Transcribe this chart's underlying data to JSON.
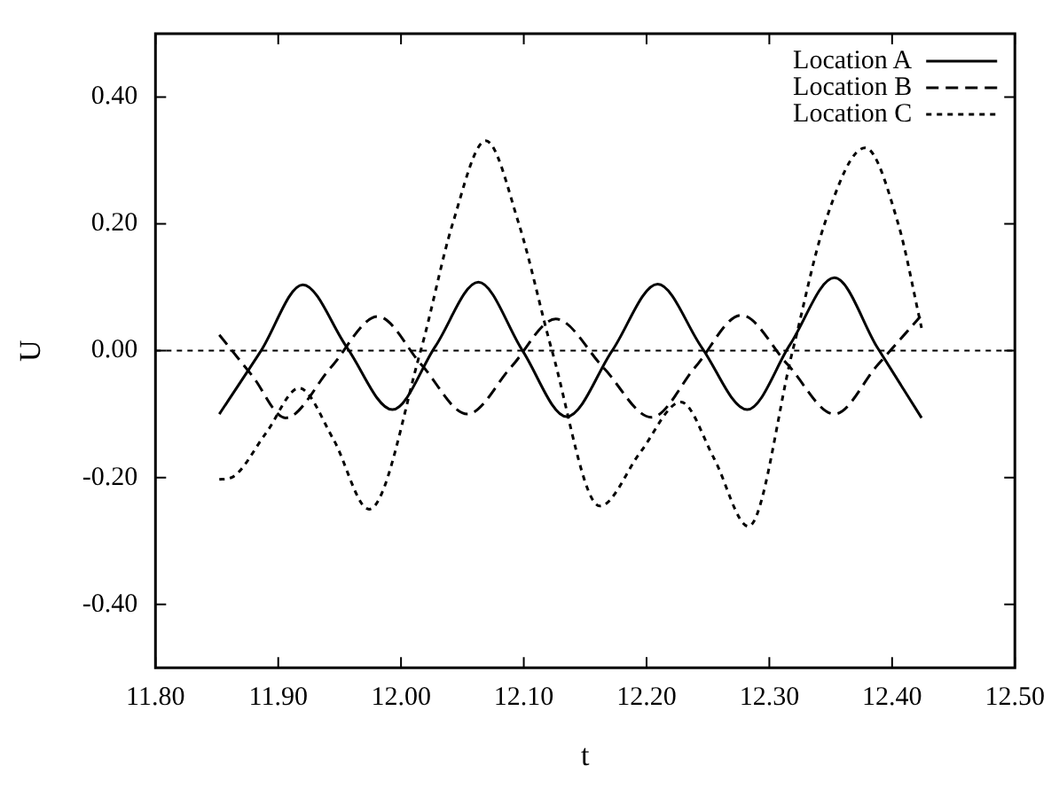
{
  "chart_data": {
    "type": "line",
    "xlabel": "t",
    "ylabel": "U",
    "xlim": [
      11.8,
      12.5
    ],
    "ylim": [
      -0.5,
      0.5
    ],
    "xticks": [
      {
        "value": 11.8,
        "label": "11.80"
      },
      {
        "value": 11.9,
        "label": "11.90"
      },
      {
        "value": 12.0,
        "label": "12.00"
      },
      {
        "value": 12.1,
        "label": "12.10"
      },
      {
        "value": 12.2,
        "label": "12.20"
      },
      {
        "value": 12.3,
        "label": "12.30"
      },
      {
        "value": 12.4,
        "label": "12.40"
      },
      {
        "value": 12.5,
        "label": "12.50"
      }
    ],
    "yticks": [
      {
        "value": -0.4,
        "label": "-0.40"
      },
      {
        "value": -0.2,
        "label": "-0.20"
      },
      {
        "value": 0,
        "label": "0.00"
      },
      {
        "value": 0.2,
        "label": "0.20"
      },
      {
        "value": 0.4,
        "label": "0.40"
      }
    ],
    "grid": false,
    "legend": "top right",
    "marker": "none",
    "ref_lines": [
      {
        "axis": "y",
        "value": 0,
        "line_style": "dotted",
        "color": "#000000"
      }
    ],
    "series": [
      {
        "name": "Location A",
        "color": "#000000",
        "line_style": "solid",
        "x": [
          11.852,
          11.886,
          11.92,
          11.956,
          11.993,
          12.028,
          12.063,
          12.099,
          12.135,
          12.172,
          12.209,
          12.245,
          12.282,
          12.317,
          12.353,
          12.388,
          12.424
        ],
        "values": [
          -0.1,
          0.0,
          0.104,
          0.005,
          -0.093,
          0.007,
          0.108,
          0.0,
          -0.104,
          0.0,
          0.105,
          0.005,
          -0.093,
          0.01,
          0.115,
          0.005,
          -0.106
        ]
      },
      {
        "name": "Location B",
        "color": "#000000",
        "line_style": "dashed",
        "x": [
          11.852,
          11.879,
          11.906,
          11.943,
          11.981,
          12.017,
          12.054,
          12.09,
          12.126,
          12.165,
          12.204,
          12.24,
          12.277,
          12.315,
          12.353,
          12.388,
          12.423
        ],
        "values": [
          0.025,
          -0.04,
          -0.106,
          -0.026,
          0.054,
          -0.023,
          -0.1,
          -0.025,
          0.05,
          -0.027,
          -0.105,
          -0.025,
          0.056,
          -0.022,
          -0.1,
          -0.023,
          0.054
        ]
      },
      {
        "name": "Location C",
        "color": "#000000",
        "line_style": "dotted",
        "x": [
          11.852,
          11.862,
          11.89,
          11.917,
          11.945,
          11.974,
          12.016,
          12.042,
          12.069,
          12.096,
          12.123,
          12.162,
          12.195,
          12.228,
          12.255,
          12.283,
          12.319,
          12.345,
          12.378,
          12.405,
          12.424
        ],
        "values": [
          -0.203,
          -0.2,
          -0.13,
          -0.059,
          -0.14,
          -0.25,
          0.0,
          0.2,
          0.331,
          0.2,
          0.0,
          -0.245,
          -0.16,
          -0.081,
          -0.17,
          -0.277,
          0.0,
          0.2,
          0.32,
          0.2,
          0.036
        ]
      }
    ]
  }
}
